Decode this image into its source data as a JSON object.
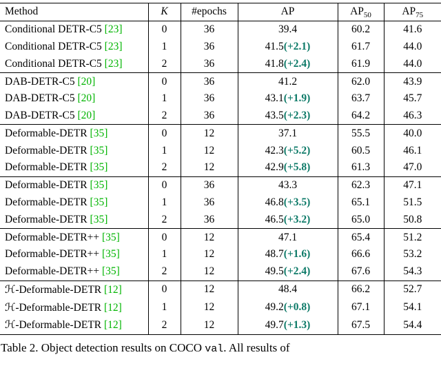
{
  "colors": {
    "citation": "#00b400",
    "delta": "#0d7a68"
  },
  "table": {
    "header": {
      "method": "Method",
      "k": "K",
      "epochs": "#epochs",
      "ap": "AP",
      "ap50_base": "AP",
      "ap50_sub": "50",
      "ap75_base": "AP",
      "ap75_sub": "75"
    },
    "groups": [
      {
        "rows": [
          {
            "method": "Conditional DETR-C5",
            "cite": "[23]",
            "k": "0",
            "epochs": "36",
            "ap": "39.4",
            "delta": "",
            "ap50": "60.2",
            "ap75": "41.6"
          },
          {
            "method": "Conditional DETR-C5",
            "cite": "[23]",
            "k": "1",
            "epochs": "36",
            "ap": "41.5",
            "delta": "(+2.1)",
            "ap50": "61.7",
            "ap75": "44.0"
          },
          {
            "method": "Conditional DETR-C5",
            "cite": "[23]",
            "k": "2",
            "epochs": "36",
            "ap": "41.8",
            "delta": "(+2.4)",
            "ap50": "61.9",
            "ap75": "44.0"
          }
        ]
      },
      {
        "rows": [
          {
            "method": "DAB-DETR-C5",
            "cite": "[20]",
            "k": "0",
            "epochs": "36",
            "ap": "41.2",
            "delta": "",
            "ap50": "62.0",
            "ap75": "43.9"
          },
          {
            "method": "DAB-DETR-C5",
            "cite": "[20]",
            "k": "1",
            "epochs": "36",
            "ap": "43.1",
            "delta": "(+1.9)",
            "ap50": "63.7",
            "ap75": "45.7"
          },
          {
            "method": "DAB-DETR-C5",
            "cite": "[20]",
            "k": "2",
            "epochs": "36",
            "ap": "43.5",
            "delta": "(+2.3)",
            "ap50": "64.2",
            "ap75": "46.3"
          }
        ]
      },
      {
        "rows": [
          {
            "method": "Deformable-DETR",
            "cite": "[35]",
            "k": "0",
            "epochs": "12",
            "ap": "37.1",
            "delta": "",
            "ap50": "55.5",
            "ap75": "40.0"
          },
          {
            "method": "Deformable-DETR",
            "cite": "[35]",
            "k": "1",
            "epochs": "12",
            "ap": "42.3",
            "delta": "(+5.2)",
            "ap50": "60.5",
            "ap75": "46.1"
          },
          {
            "method": "Deformable-DETR",
            "cite": "[35]",
            "k": "2",
            "epochs": "12",
            "ap": "42.9",
            "delta": "(+5.8)",
            "ap50": "61.3",
            "ap75": "47.0"
          }
        ]
      },
      {
        "rows": [
          {
            "method": "Deformable-DETR",
            "cite": "[35]",
            "k": "0",
            "epochs": "36",
            "ap": "43.3",
            "delta": "",
            "ap50": "62.3",
            "ap75": "47.1"
          },
          {
            "method": "Deformable-DETR",
            "cite": "[35]",
            "k": "1",
            "epochs": "36",
            "ap": "46.8",
            "delta": "(+3.5)",
            "ap50": "65.1",
            "ap75": "51.5"
          },
          {
            "method": "Deformable-DETR",
            "cite": "[35]",
            "k": "2",
            "epochs": "36",
            "ap": "46.5",
            "delta": "(+3.2)",
            "ap50": "65.0",
            "ap75": "50.8"
          }
        ]
      },
      {
        "rows": [
          {
            "method": "Deformable-DETR++",
            "cite": "[35]",
            "k": "0",
            "epochs": "12",
            "ap": "47.1",
            "delta": "",
            "ap50": "65.4",
            "ap75": "51.2"
          },
          {
            "method": "Deformable-DETR++",
            "cite": "[35]",
            "k": "1",
            "epochs": "12",
            "ap": "48.7",
            "delta": "(+1.6)",
            "ap50": "66.6",
            "ap75": "53.2"
          },
          {
            "method": "Deformable-DETR++",
            "cite": "[35]",
            "k": "2",
            "epochs": "12",
            "ap": "49.5",
            "delta": "(+2.4)",
            "ap50": "67.6",
            "ap75": "54.3"
          }
        ]
      },
      {
        "rows": [
          {
            "method": "ℋ-Deformable-DETR",
            "cite": "[12]",
            "k": "0",
            "epochs": "12",
            "ap": "48.4",
            "delta": "",
            "ap50": "66.2",
            "ap75": "52.7"
          },
          {
            "method": "ℋ-Deformable-DETR",
            "cite": "[12]",
            "k": "1",
            "epochs": "12",
            "ap": "49.2",
            "delta": "(+0.8)",
            "ap50": "67.1",
            "ap75": "54.1"
          },
          {
            "method": "ℋ-Deformable-DETR",
            "cite": "[12]",
            "k": "2",
            "epochs": "12",
            "ap": "49.7",
            "delta": "(+1.3)",
            "ap50": "67.5",
            "ap75": "54.4"
          }
        ]
      }
    ]
  },
  "caption": {
    "prefix": "Table 2.  Object detection results on COCO ",
    "mono": "val",
    "suffix": ".  All results of"
  }
}
